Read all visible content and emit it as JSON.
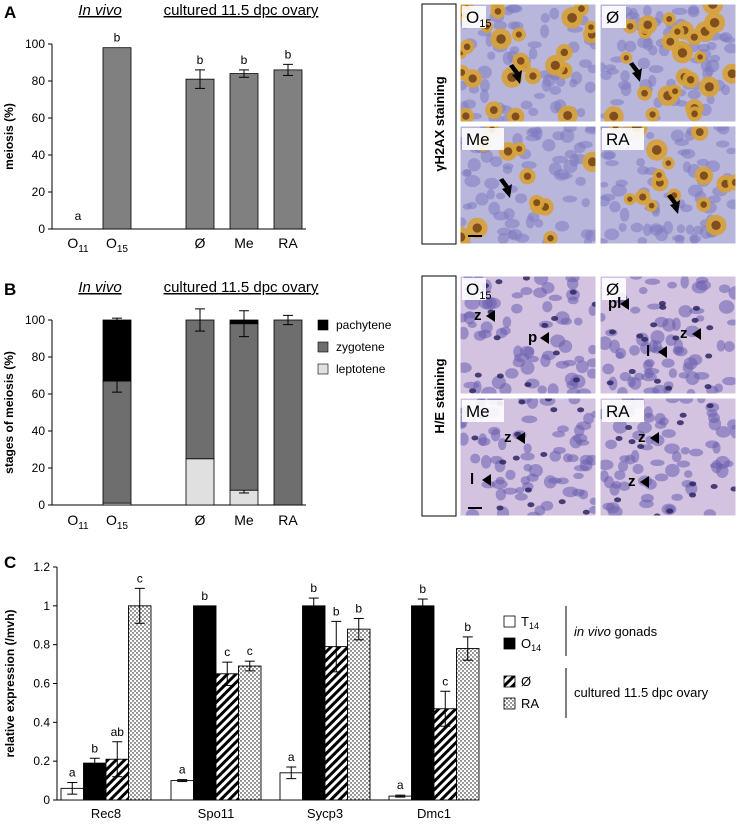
{
  "panel_a": {
    "letter": "A",
    "header_invivo": "In vivo",
    "header_cultured": "cultured 11.5 dpc ovary",
    "staining_label": "γH2AX staining",
    "micrograph_labels": [
      {
        "base": "O",
        "sub": "15"
      },
      {
        "base": "Ø",
        "sub": ""
      },
      {
        "base": "Me",
        "sub": ""
      },
      {
        "base": "RA",
        "sub": ""
      }
    ]
  },
  "panel_b": {
    "letter": "B",
    "header_invivo": "In vivo",
    "header_cultured": "cultured 11.5 dpc ovary",
    "staining_label": "H/E staining",
    "legend": [
      "pachytene",
      "zygotene",
      "leptotene"
    ],
    "micrograph_labels": [
      {
        "base": "O",
        "sub": "15"
      },
      {
        "base": "Ø",
        "sub": ""
      },
      {
        "base": "Me",
        "sub": ""
      },
      {
        "base": "RA",
        "sub": ""
      }
    ],
    "arrow_letters": [
      [
        "z",
        "p"
      ],
      [
        "pl",
        "l",
        "z"
      ],
      [
        "z",
        "l"
      ],
      [
        "z",
        "z"
      ]
    ]
  },
  "panel_c": {
    "letter": "C",
    "legend_invivo_text": "in vivo",
    "legend_invivo_rest": " gonads",
    "legend_cultured": "cultured 11.5 dpc ovary",
    "legend_items": [
      {
        "base": "T",
        "sub": "14"
      },
      {
        "base": "O",
        "sub": "14"
      },
      {
        "base": "Ø",
        "sub": ""
      },
      {
        "base": "RA",
        "sub": ""
      }
    ]
  },
  "colors": {
    "bar_gray": "#808080",
    "pachytene": "#000000",
    "zygotene": "#6e6e6e",
    "leptotene": "#e0e0e0",
    "ihc_brown": "#c8952a",
    "tissue_blue": "#a9a9d6",
    "he_pink": "#c7b2d6"
  },
  "chart_data": [
    {
      "type": "bar",
      "ylabel": "meiosis (%)",
      "ylim": [
        0,
        100
      ],
      "yticks": [
        "0",
        "20",
        "40",
        "60",
        "80",
        "100"
      ],
      "categories": [
        {
          "base": "O",
          "sub": "11"
        },
        {
          "base": "O",
          "sub": "15"
        },
        {
          "base": "Ø",
          "sub": ""
        },
        {
          "base": "Me",
          "sub": ""
        },
        {
          "base": "RA",
          "sub": ""
        }
      ],
      "values": [
        0,
        98,
        81,
        84,
        86
      ],
      "errors": [
        0,
        0,
        5,
        2,
        3
      ],
      "letters": [
        "a",
        "b",
        "b",
        "b",
        "b"
      ]
    },
    {
      "type": "bar",
      "stacked": true,
      "ylabel": "stages of meiosis (%)",
      "ylim": [
        0,
        100
      ],
      "yticks": [
        "0",
        "20",
        "40",
        "60",
        "80",
        "100"
      ],
      "categories": [
        {
          "base": "O",
          "sub": "11"
        },
        {
          "base": "O",
          "sub": "15"
        },
        {
          "base": "Ø",
          "sub": ""
        },
        {
          "base": "Me",
          "sub": ""
        },
        {
          "base": "RA",
          "sub": ""
        }
      ],
      "series": [
        {
          "name": "leptotene",
          "values": [
            0,
            1,
            25,
            8,
            0
          ],
          "errors": [
            0,
            0,
            0,
            1.5,
            0
          ]
        },
        {
          "name": "zygotene",
          "values": [
            0,
            66,
            75,
            90,
            100
          ],
          "errors": [
            0,
            6,
            0,
            7,
            0
          ]
        },
        {
          "name": "pachytene",
          "values": [
            0,
            33,
            0,
            2,
            0
          ],
          "errors": [
            0,
            1,
            6,
            0,
            2.5
          ]
        }
      ]
    },
    {
      "type": "bar",
      "grouped": true,
      "ylabel": "relative expression (/mvh)",
      "ylim": [
        0,
        1.2
      ],
      "yticks": [
        "0",
        "0.2",
        "0.4",
        "0.6",
        "0.8",
        "1",
        "1.2"
      ],
      "categories": [
        "Rec8",
        "Spo11",
        "Sycp3",
        "Dmc1"
      ],
      "series": [
        {
          "values": [
            0.06,
            0.1,
            0.14,
            0.02
          ],
          "errors": [
            0.03,
            0.005,
            0.03,
            0.005
          ],
          "letters": [
            "a",
            "a",
            "a",
            "a"
          ]
        },
        {
          "values": [
            0.19,
            1.0,
            1.0,
            1.0
          ],
          "errors": [
            0.025,
            0.0,
            0.04,
            0.035
          ],
          "letters": [
            "b",
            "b",
            "b",
            "b"
          ]
        },
        {
          "values": [
            0.21,
            0.65,
            0.79,
            0.47
          ],
          "errors": [
            0.09,
            0.06,
            0.13,
            0.09
          ],
          "letters": [
            "ab",
            "c",
            "b",
            "c"
          ]
        },
        {
          "values": [
            1.0,
            0.69,
            0.88,
            0.78
          ],
          "errors": [
            0.09,
            0.025,
            0.055,
            0.06
          ],
          "letters": [
            "c",
            "c",
            "b",
            "b"
          ]
        }
      ]
    }
  ]
}
